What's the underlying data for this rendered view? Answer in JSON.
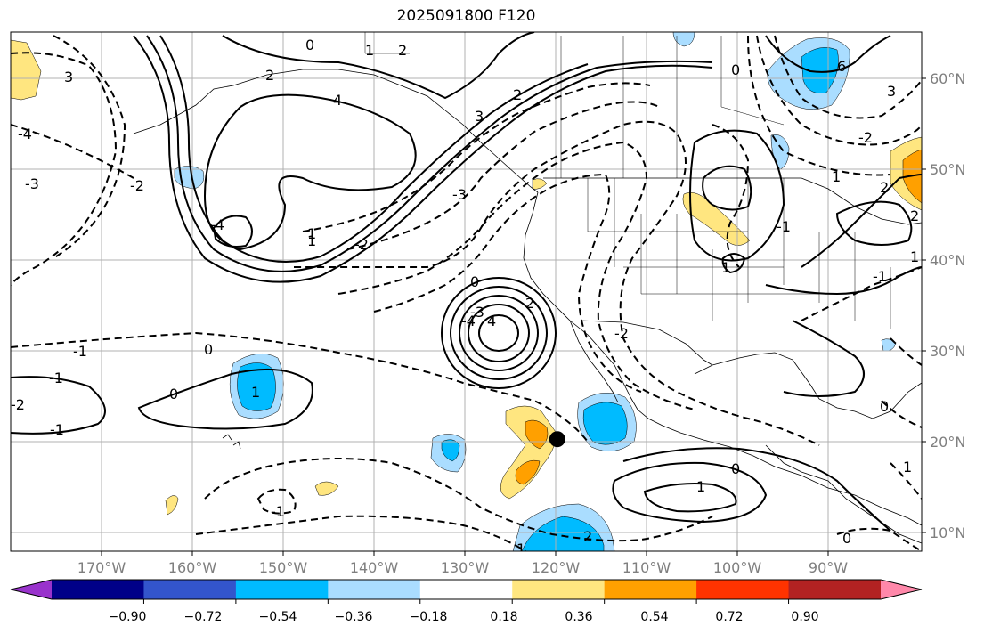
{
  "title": "2025091800 F120",
  "map": {
    "lon_range": [
      -180,
      -80
    ],
    "lat_range": [
      8,
      65
    ],
    "lon_ticks": [
      "170°W",
      "160°W",
      "150°W",
      "140°W",
      "130°W",
      "120°W",
      "110°W",
      "100°W",
      "90°W"
    ],
    "lat_ticks": [
      "60°N",
      "50°N",
      "40°N",
      "30°N",
      "20°N",
      "10°N"
    ],
    "grid": true,
    "marker": {
      "lon": -120,
      "lat": 20.3,
      "color": "#000000"
    },
    "contour_labels": [
      "0",
      "2",
      "4",
      "3",
      "2",
      "0",
      "1",
      "2",
      "3",
      "-2",
      "-3",
      "-4",
      "-3",
      "-2",
      "-1",
      "0",
      "1",
      "-1",
      "0",
      "1",
      "-1",
      "-2",
      "4",
      "2",
      "1",
      "6",
      "-4",
      "3",
      "-2",
      "2",
      "1",
      "-1",
      "0",
      "1",
      "-1",
      "-2",
      "1",
      "2",
      "0",
      "1",
      "-4",
      "-3",
      "-1",
      "0",
      "1",
      "0",
      "1",
      "2"
    ]
  },
  "colorbar": {
    "levels": [
      "−0.90",
      "−0.72",
      "−0.54",
      "−0.36",
      "−0.18",
      "0.18",
      "0.36",
      "0.54",
      "0.72",
      "0.90"
    ],
    "colors": [
      "#9933cc",
      "#000088",
      "#3355cc",
      "#00bbff",
      "#aaddff",
      "#ffffff",
      "#ffe680",
      "#ffa000",
      "#ff3300",
      "#b22222",
      "#ff88aa"
    ]
  },
  "colors": {
    "light_blue": "#aaddff",
    "blue": "#00bbff",
    "light_yellow": "#ffe680",
    "orange": "#ffa000"
  }
}
